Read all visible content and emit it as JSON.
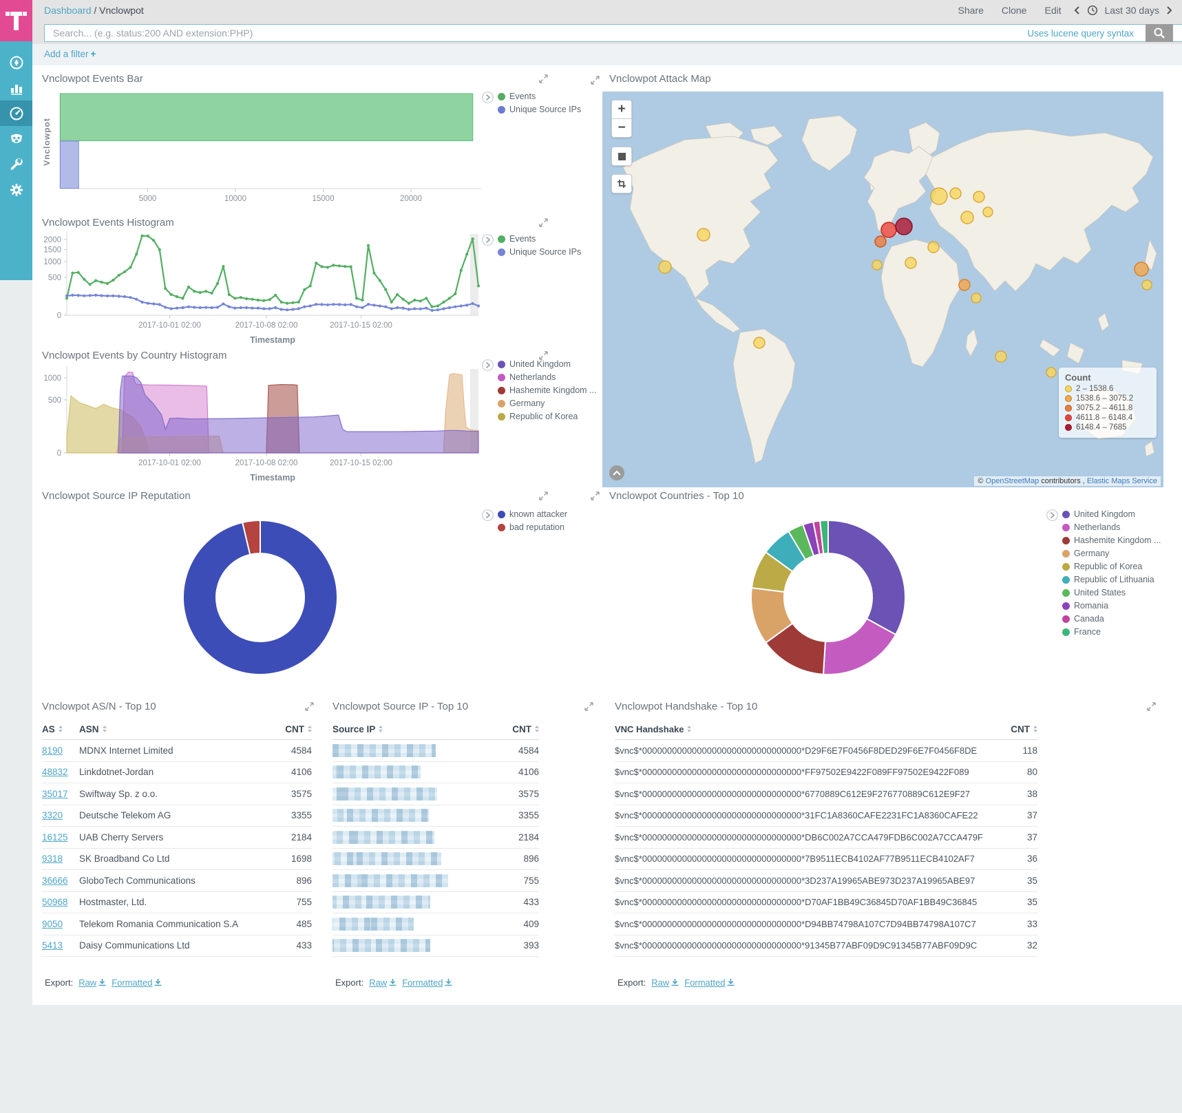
{
  "header": {
    "breadcrumb": {
      "root": "Dashboard",
      "sep": "/",
      "current": "Vnclowpot"
    },
    "menu": {
      "share": "Share",
      "clone": "Clone",
      "edit": "Edit"
    },
    "time_range": "Last 30 days",
    "search": {
      "placeholder": "Search... (e.g. status:200 AND extension:PHP)",
      "hint": "Uses lucene query syntax"
    },
    "filter": {
      "label": "Add a filter",
      "plus": "+"
    }
  },
  "panels": {
    "events_bar": {
      "title": "Vnclowpot Events Bar"
    },
    "events_histogram": {
      "title": "Vnclowpot Events Histogram"
    },
    "country_histogram": {
      "title": "Vnclowpot Events by Country Histogram"
    },
    "attack_map": {
      "title": "Vnclowpot Attack Map",
      "legend_title": "Count",
      "attribution": {
        "prefix": "©",
        "osm": "OpenStreetMap",
        "middle": "contributors ,",
        "ems": "Elastic Maps Service"
      }
    },
    "ip_reputation": {
      "title": "Vnclowpot Source IP Reputation"
    },
    "countries": {
      "title": "Vnclowpot Countries - Top 10"
    },
    "asn": {
      "title": "Vnclowpot AS/N - Top 10"
    },
    "srcip": {
      "title": "Vnclowpot Source IP - Top 10"
    },
    "handshake": {
      "title": "Vnclowpot Handshake - Top 10"
    }
  },
  "export": {
    "label": "Export:",
    "raw": "Raw",
    "formatted": "Formatted"
  },
  "chart_data": [
    {
      "id": "events_bar",
      "type": "bar",
      "orientation": "horizontal",
      "ylabel": "Vnclowpot",
      "xlim": [
        0,
        24000
      ],
      "xticks": [
        5000,
        10000,
        15000,
        20000
      ],
      "series": [
        {
          "name": "Events",
          "value": 23500,
          "color": "#8ED3A0",
          "stroke": "#5FBA7D",
          "dot": "#57AB63"
        },
        {
          "name": "Unique Source IPs",
          "value": 1050,
          "color": "#B2BBE8",
          "stroke": "#7E8CD8",
          "dot": "#6E7BD3"
        }
      ]
    },
    {
      "id": "events_histogram",
      "type": "line",
      "xlabel": "Timestamp",
      "yscale": "sqrt",
      "ylim": [
        0,
        2300
      ],
      "yticks": [
        0,
        500,
        1000,
        1500,
        2000
      ],
      "xticks": [
        {
          "pos": 0.25,
          "label": "2017-10-01 02:00"
        },
        {
          "pos": 0.485,
          "label": "2017-10-08 02:00"
        },
        {
          "pos": 0.715,
          "label": "2017-10-15 02:00"
        }
      ],
      "series": [
        {
          "name": "Events",
          "color": "#54AE63",
          "values": [
            100,
            620,
            640,
            450,
            330,
            420,
            380,
            350,
            430,
            560,
            660,
            800,
            1300,
            2200,
            2190,
            1950,
            1500,
            250,
            150,
            120,
            100,
            280,
            200,
            180,
            200,
            170,
            350,
            830,
            150,
            100,
            110,
            95,
            90,
            80,
            75,
            85,
            140,
            60,
            50,
            55,
            60,
            230,
            300,
            950,
            820,
            800,
            870,
            850,
            830,
            820,
            100,
            80,
            1700,
            620,
            420,
            230,
            60,
            150,
            90,
            50,
            80,
            70,
            100,
            25,
            30,
            60,
            100,
            160,
            700,
            1300,
            2030,
            300
          ]
        },
        {
          "name": "Unique Source IPs",
          "color": "#7585D6",
          "values": [
            130,
            140,
            138,
            132,
            136,
            140,
            134,
            130,
            131,
            126,
            120,
            110,
            90,
            60,
            50,
            45,
            40,
            22,
            15,
            18,
            20,
            25,
            22,
            20,
            21,
            20,
            22,
            45,
            25,
            18,
            20,
            20,
            18,
            18,
            15,
            15,
            20,
            12,
            10,
            12,
            15,
            25,
            30,
            42,
            40,
            38,
            41,
            40,
            38,
            40,
            25,
            20,
            42,
            35,
            30,
            25,
            15,
            20,
            18,
            12,
            15,
            14,
            18,
            8,
            10,
            15,
            20,
            25,
            30,
            35,
            48,
            30
          ]
        }
      ]
    },
    {
      "id": "country_histogram",
      "type": "area",
      "xlabel": "Timestamp",
      "yscale": "sqrt",
      "ylim": [
        0,
        1250
      ],
      "yticks": [
        0,
        500,
        1000
      ],
      "xticks": [
        {
          "pos": 0.25,
          "label": "2017-10-01 02:00"
        },
        {
          "pos": 0.485,
          "label": "2017-10-08 02:00"
        },
        {
          "pos": 0.715,
          "label": "2017-10-15 02:00"
        }
      ],
      "legend_order": [
        "United Kingdom",
        "Netherlands",
        "Hashemite Kingdom ...",
        "Germany",
        "Republic of Korea"
      ],
      "series": [
        {
          "name": "Republic of Korea",
          "color": "#CFC06A",
          "opacity": 0.6,
          "points": [
            [
              0,
              40
            ],
            [
              1,
              580
            ],
            [
              3,
              450
            ],
            [
              5,
              400
            ],
            [
              7,
              350
            ],
            [
              9,
              420
            ],
            [
              11,
              360
            ],
            [
              13,
              330
            ],
            [
              15,
              260
            ],
            [
              16,
              230
            ],
            [
              18,
              120
            ],
            [
              19,
              40
            ],
            [
              20,
              0
            ]
          ]
        },
        {
          "name": "Netherlands",
          "color": "#CE6DC8",
          "opacity": 0.45,
          "points": [
            [
              13.5,
              0
            ],
            [
              14,
              1030
            ],
            [
              15,
              1160
            ],
            [
              16,
              1150
            ],
            [
              16.5,
              900
            ],
            [
              17,
              830
            ],
            [
              20,
              820
            ],
            [
              25,
              815
            ],
            [
              30,
              805
            ],
            [
              33,
              795
            ],
            [
              34,
              790
            ],
            [
              34.5,
              0
            ]
          ]
        },
        {
          "name": "Hashemite Kingdom ...",
          "color": "#A34A45",
          "opacity": 0.55,
          "points": [
            [
              48.5,
              0
            ],
            [
              49,
              810
            ],
            [
              52,
              830
            ],
            [
              55,
              825
            ],
            [
              56,
              815
            ],
            [
              56.5,
              0
            ]
          ]
        },
        {
          "name": "Germany",
          "color": "#E0B483",
          "opacity": 0.6,
          "points": [
            [
              12,
              0
            ],
            [
              13,
              40
            ],
            [
              20,
              45
            ],
            [
              30,
              48
            ],
            [
              37,
              50
            ],
            [
              38,
              0
            ],
            [
              91.5,
              0
            ],
            [
              92,
              300
            ],
            [
              93,
              1090
            ],
            [
              94,
              1120
            ],
            [
              95,
              1100
            ],
            [
              96,
              1080
            ],
            [
              96.5,
              400
            ],
            [
              97,
              120
            ],
            [
              98,
              95
            ],
            [
              100,
              88
            ]
          ]
        },
        {
          "name": "United Kingdom",
          "color": "#7A62C9",
          "opacity": 0.5,
          "points": [
            [
              12.5,
              0
            ],
            [
              13,
              680
            ],
            [
              13.5,
              1050
            ],
            [
              16,
              1050
            ],
            [
              17,
              1000
            ],
            [
              18,
              880
            ],
            [
              19,
              600
            ],
            [
              21,
              430
            ],
            [
              23,
              260
            ],
            [
              24,
              100
            ],
            [
              25,
              210
            ],
            [
              27,
              215
            ],
            [
              30,
              205
            ],
            [
              40,
              210
            ],
            [
              50,
              220
            ],
            [
              60,
              230
            ],
            [
              64,
              245
            ],
            [
              66,
              255
            ],
            [
              67,
              100
            ],
            [
              68,
              80
            ],
            [
              80,
              80
            ],
            [
              90,
              85
            ],
            [
              93,
              90
            ],
            [
              95,
              90
            ],
            [
              97,
              85
            ],
            [
              100,
              82
            ]
          ]
        }
      ]
    },
    {
      "id": "ip_reputation",
      "type": "pie",
      "donut": true,
      "slices": [
        {
          "label": "known attacker",
          "value": 96.3,
          "color": "#3D4DB7"
        },
        {
          "label": "bad reputation",
          "value": 3.7,
          "color": "#B5433F"
        }
      ]
    },
    {
      "id": "countries",
      "type": "pie",
      "donut": true,
      "slices": [
        {
          "label": "United Kingdom",
          "value": 33,
          "color": "#6B52B5"
        },
        {
          "label": "Netherlands",
          "value": 18,
          "color": "#C45BC0"
        },
        {
          "label": "Hashemite Kingdom ...",
          "value": 14,
          "color": "#9E3A38"
        },
        {
          "label": "Germany",
          "value": 12,
          "color": "#D9A267"
        },
        {
          "label": "Republic of Korea",
          "value": 8,
          "color": "#BBAA45"
        },
        {
          "label": "Republic of Lithuania",
          "value": 6.4,
          "color": "#3DAEBA"
        },
        {
          "label": "United States",
          "value": 3.3,
          "color": "#5CB85C"
        },
        {
          "label": "Romania",
          "value": 2.2,
          "color": "#8A43B8"
        },
        {
          "label": "Canada",
          "value": 1.4,
          "color": "#C2439E"
        },
        {
          "label": "France",
          "value": 1.7,
          "color": "#3BB578"
        }
      ]
    },
    {
      "id": "attack_map",
      "type": "bubble-map",
      "legend": [
        {
          "range": "2 – 1538.6",
          "color": "#F7D65C"
        },
        {
          "range": "1538.6 – 3075.2",
          "color": "#F5A94B"
        },
        {
          "range": "3075.2 – 4611.8",
          "color": "#EE7D3E"
        },
        {
          "range": "4611.8 – 6148.4",
          "color": "#E8433C"
        },
        {
          "range": "6148.4 – 7685",
          "color": "#B01830"
        }
      ],
      "markers": [
        {
          "x": 147,
          "y": 208,
          "r": 9,
          "color": "#F7D65C",
          "stroke": "#D8A93B"
        },
        {
          "x": 91,
          "y": 255,
          "r": 9,
          "color": "#F7D65C",
          "stroke": "#D8A93B"
        },
        {
          "x": 228,
          "y": 365,
          "r": 8,
          "color": "#F7D65C",
          "stroke": "#D8A93B"
        },
        {
          "x": 416,
          "y": 201,
          "r": 11,
          "color": "#E8433C",
          "stroke": "#C0271F"
        },
        {
          "x": 438,
          "y": 196,
          "r": 12,
          "color": "#B01830",
          "stroke": "#8C0E26"
        },
        {
          "x": 404,
          "y": 218,
          "r": 8,
          "color": "#EE7D3E",
          "stroke": "#C85A22"
        },
        {
          "x": 489,
          "y": 152,
          "r": 12,
          "color": "#F7D65C",
          "stroke": "#D8A93B"
        },
        {
          "x": 513,
          "y": 148,
          "r": 8,
          "color": "#F7D65C",
          "stroke": "#D8A93B"
        },
        {
          "x": 547,
          "y": 153,
          "r": 8,
          "color": "#F7D65C",
          "stroke": "#D8A93B"
        },
        {
          "x": 530,
          "y": 183,
          "r": 9,
          "color": "#F7D65C",
          "stroke": "#D8A93B"
        },
        {
          "x": 560,
          "y": 175,
          "r": 7,
          "color": "#F7D65C",
          "stroke": "#D8A93B"
        },
        {
          "x": 481,
          "y": 226,
          "r": 8,
          "color": "#F7D65C",
          "stroke": "#D8A93B"
        },
        {
          "x": 448,
          "y": 249,
          "r": 8,
          "color": "#F7D65C",
          "stroke": "#D8A93B"
        },
        {
          "x": 399,
          "y": 252,
          "r": 7,
          "color": "#F7D65C",
          "stroke": "#D8A93B"
        },
        {
          "x": 526,
          "y": 281,
          "r": 8,
          "color": "#F5A94B",
          "stroke": "#D97F2C"
        },
        {
          "x": 543,
          "y": 300,
          "r": 7,
          "color": "#F7D65C",
          "stroke": "#D8A93B"
        },
        {
          "x": 783,
          "y": 258,
          "r": 10,
          "color": "#F5A94B",
          "stroke": "#D97F2C"
        },
        {
          "x": 791,
          "y": 281,
          "r": 7,
          "color": "#F7D65C",
          "stroke": "#D8A93B"
        },
        {
          "x": 579,
          "y": 385,
          "r": 8,
          "color": "#F7D65C",
          "stroke": "#D8A93B"
        },
        {
          "x": 652,
          "y": 408,
          "r": 7,
          "color": "#F7D65C",
          "stroke": "#D8A93B"
        }
      ]
    },
    {
      "id": "asn_table",
      "type": "table",
      "headers": [
        "AS",
        "ASN",
        "CNT"
      ],
      "rows": [
        [
          "8190",
          "MDNX Internet Limited",
          "4584"
        ],
        [
          "48832",
          "Linkdotnet-Jordan",
          "4106"
        ],
        [
          "35017",
          "Swiftway Sp. z o.o.",
          "3575"
        ],
        [
          "3320",
          "Deutsche Telekom AG",
          "3355"
        ],
        [
          "16125",
          "UAB Cherry Servers",
          "2184"
        ],
        [
          "9318",
          "SK Broadband Co Ltd",
          "1698"
        ],
        [
          "36666",
          "GloboTech Communications",
          "896"
        ],
        [
          "50968",
          "Hostmaster, Ltd.",
          "755"
        ],
        [
          "9050",
          "Telekom Romania Communication S.A",
          "485"
        ],
        [
          "5413",
          "Daisy Communications Ltd",
          "433"
        ]
      ]
    },
    {
      "id": "srcip_table",
      "type": "table",
      "redacted": true,
      "headers": [
        "Source IP",
        "CNT"
      ],
      "rows": [
        {
          "width": 150,
          "cnt": "4584"
        },
        {
          "width": 128,
          "cnt": "4106"
        },
        {
          "width": 152,
          "cnt": "3575"
        },
        {
          "width": 140,
          "cnt": "3355"
        },
        {
          "width": 148,
          "cnt": "2184"
        },
        {
          "width": 158,
          "cnt": "896"
        },
        {
          "width": 168,
          "cnt": "755"
        },
        {
          "width": 142,
          "cnt": "433"
        },
        {
          "width": 118,
          "cnt": "409"
        },
        {
          "width": 142,
          "cnt": "393"
        }
      ]
    },
    {
      "id": "handshake_table",
      "type": "table",
      "headers": [
        "VNC Handshake",
        "CNT"
      ],
      "rows": [
        [
          "$vnc$*00000000000000000000000000000000*D29F6E7F0456F8DED29F6E7F0456F8DE",
          "118"
        ],
        [
          "$vnc$*00000000000000000000000000000000*FF97502E9422F089FF97502E9422F089",
          "80"
        ],
        [
          "$vnc$*00000000000000000000000000000000*6770889C612E9F276770889C612E9F27",
          "38"
        ],
        [
          "$vnc$*00000000000000000000000000000000*31FC1A8360CAFE2231FC1A8360CAFE22",
          "37"
        ],
        [
          "$vnc$*00000000000000000000000000000000*DB6C002A7CCA479FDB6C002A7CCA479F",
          "37"
        ],
        [
          "$vnc$*00000000000000000000000000000000*7B9511ECB4102AF77B9511ECB4102AF7",
          "36"
        ],
        [
          "$vnc$*00000000000000000000000000000000*3D237A19965ABE973D237A19965ABE97",
          "35"
        ],
        [
          "$vnc$*00000000000000000000000000000000*D70AF1BB49C36845D70AF1BB49C36845",
          "35"
        ],
        [
          "$vnc$*00000000000000000000000000000000*D94BB74798A107C7D94BB74798A107C7",
          "33"
        ],
        [
          "$vnc$*00000000000000000000000000000000*91345B77ABF09D9C91345B77ABF09D9C",
          "32"
        ]
      ]
    }
  ]
}
